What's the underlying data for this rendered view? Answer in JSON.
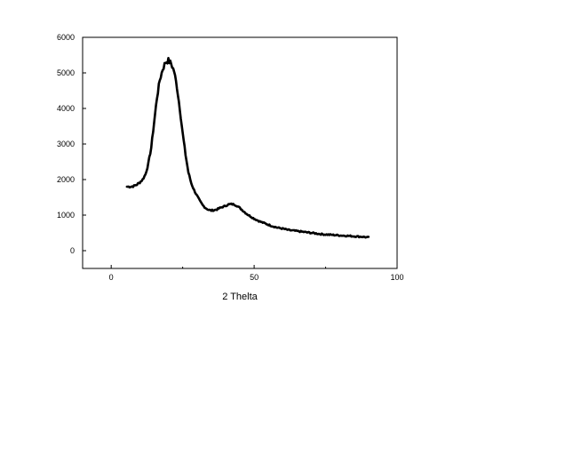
{
  "chart_data": {
    "type": "line",
    "title": "",
    "xlabel": "2 Thelta",
    "ylabel": "",
    "xlim": [
      -10,
      100
    ],
    "ylim": [
      -500,
      6000
    ],
    "xticks": [
      0,
      50,
      100
    ],
    "yticks": [
      0,
      1000,
      2000,
      3000,
      4000,
      5000,
      6000
    ],
    "grid": false,
    "legend": "none",
    "series": [
      {
        "color": "#000000",
        "x": [
          5.5,
          7,
          8,
          9,
          10,
          11,
          12,
          13,
          14,
          15,
          16,
          17,
          18,
          19,
          20,
          21,
          22,
          23,
          24,
          25,
          26,
          27,
          28,
          29,
          30,
          31,
          32,
          33,
          34,
          35,
          36,
          37,
          38,
          39,
          40,
          41,
          42,
          43,
          44,
          45,
          46,
          47,
          48,
          50,
          52,
          54,
          56,
          58,
          60,
          62,
          64,
          66,
          68,
          70,
          72,
          74,
          76,
          78,
          80,
          82,
          84,
          86,
          88,
          90
        ],
        "y": [
          1800,
          1800,
          1820,
          1860,
          1920,
          2000,
          2150,
          2450,
          2900,
          3600,
          4300,
          4800,
          5100,
          5300,
          5350,
          5250,
          5050,
          4600,
          4000,
          3300,
          2700,
          2200,
          1900,
          1700,
          1550,
          1400,
          1280,
          1200,
          1150,
          1130,
          1140,
          1160,
          1200,
          1230,
          1260,
          1300,
          1310,
          1300,
          1260,
          1200,
          1130,
          1060,
          1000,
          900,
          820,
          760,
          700,
          650,
          620,
          580,
          560,
          540,
          520,
          500,
          480,
          460,
          450,
          440,
          430,
          420,
          410,
          400,
          390,
          370
        ]
      }
    ]
  }
}
